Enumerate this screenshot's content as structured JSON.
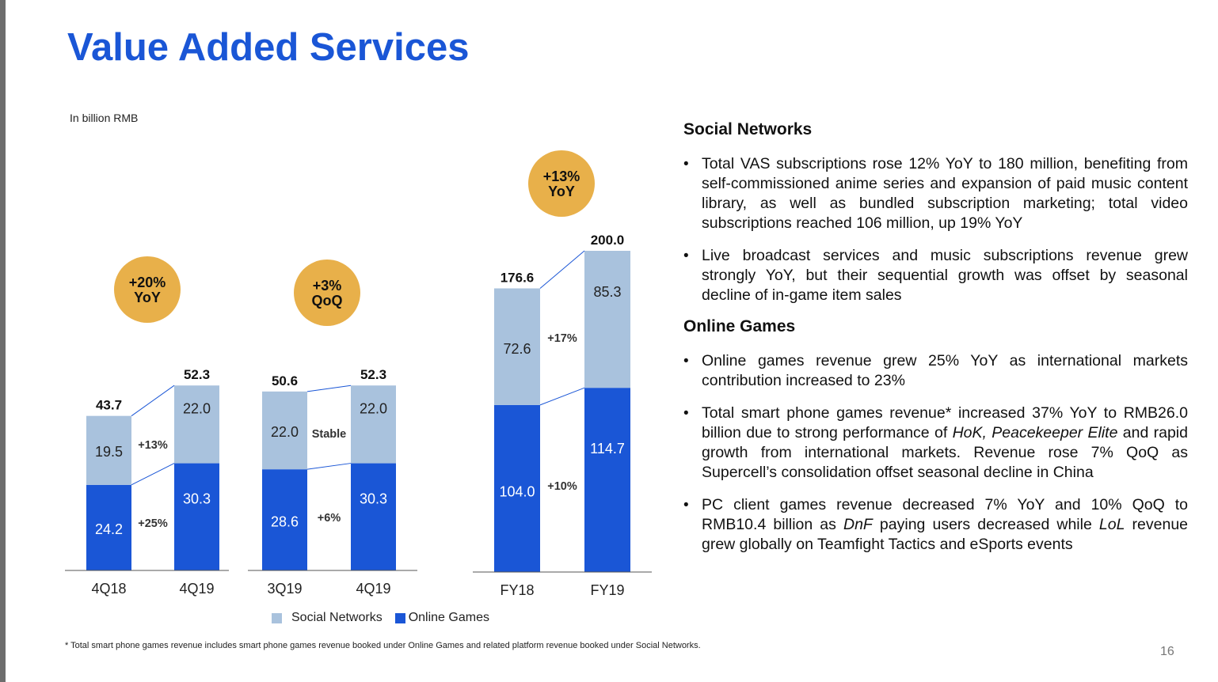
{
  "title": "Value Added Services",
  "unit_label": "In billion RMB",
  "colors": {
    "social": "#a9c2dd",
    "games": "#1a56d6",
    "badge": "#e8b04a",
    "title": "#1a56d6"
  },
  "legend": {
    "social": "Social Networks",
    "games": "Online Games"
  },
  "chart_data": [
    {
      "type": "bar",
      "stacked": true,
      "categories": [
        "4Q18",
        "4Q19"
      ],
      "series": [
        {
          "name": "Online Games",
          "values": [
            24.2,
            30.3
          ]
        },
        {
          "name": "Social Networks",
          "values": [
            19.5,
            22.0
          ]
        }
      ],
      "totals": [
        "43.7",
        "52.3"
      ],
      "value_labels": {
        "games": [
          "24.2",
          "30.3"
        ],
        "social": [
          "19.5",
          "22.0"
        ]
      },
      "growth": {
        "social": "+13%",
        "games": "+25%"
      },
      "badge": [
        "+20%",
        "YoY"
      ]
    },
    {
      "type": "bar",
      "stacked": true,
      "categories": [
        "3Q19",
        "4Q19"
      ],
      "series": [
        {
          "name": "Online Games",
          "values": [
            28.6,
            30.3
          ]
        },
        {
          "name": "Social Networks",
          "values": [
            22.0,
            22.0
          ]
        }
      ],
      "totals": [
        "50.6",
        "52.3"
      ],
      "value_labels": {
        "games": [
          "28.6",
          "30.3"
        ],
        "social": [
          "22.0",
          "22.0"
        ]
      },
      "growth": {
        "social": "Stable",
        "games": "+6%"
      },
      "badge": [
        "+3%",
        "QoQ"
      ]
    },
    {
      "type": "bar",
      "stacked": true,
      "categories": [
        "FY18",
        "FY19"
      ],
      "series": [
        {
          "name": "Online Games",
          "values": [
            104.0,
            114.7
          ]
        },
        {
          "name": "Social Networks",
          "values": [
            72.6,
            85.3
          ]
        }
      ],
      "totals": [
        "176.6",
        "200.0"
      ],
      "value_labels": {
        "games": [
          "104.0",
          "114.7"
        ],
        "social": [
          "72.6",
          "85.3"
        ]
      },
      "growth": {
        "social": "+17%",
        "games": "+10%"
      },
      "badge": [
        "+13%",
        "YoY"
      ]
    }
  ],
  "right": {
    "social_title": "Social Networks",
    "social_bullets": [
      "Total VAS subscriptions rose 12% YoY to 180 million, benefiting from self-commissioned anime series and expansion of paid music content library, as well as bundled subscription marketing; total video subscriptions reached 106 million, up 19% YoY",
      "Live broadcast services and music subscriptions revenue grew strongly YoY, but their sequential growth was offset by seasonal decline of in-game item sales"
    ],
    "games_title": "Online Games",
    "games_bullets": [
      {
        "parts": [
          {
            "t": "Online games revenue grew 25% YoY as international markets contribution increased to 23%"
          }
        ]
      },
      {
        "parts": [
          {
            "t": "Total smart phone games revenue* increased 37% YoY to RMB26.0 billion due to strong performance of "
          },
          {
            "t": "HoK, Peacekeeper Elite",
            "i": true
          },
          {
            "t": " and rapid growth from international markets. Revenue rose 7% QoQ as Supercell’s consolidation offset seasonal decline in China"
          }
        ]
      },
      {
        "parts": [
          {
            "t": "PC client games revenue decreased 7% YoY and 10% QoQ to RMB10.4 billion as "
          },
          {
            "t": "DnF",
            "i": true
          },
          {
            "t": " paying users decreased while "
          },
          {
            "t": "LoL",
            "i": true
          },
          {
            "t": " revenue grew globally on Teamfight Tactics and eSports events"
          }
        ]
      }
    ]
  },
  "footnote": "* Total smart phone games revenue includes smart phone games revenue booked under Online Games and related platform revenue booked under Social Networks.",
  "page_number": "16"
}
